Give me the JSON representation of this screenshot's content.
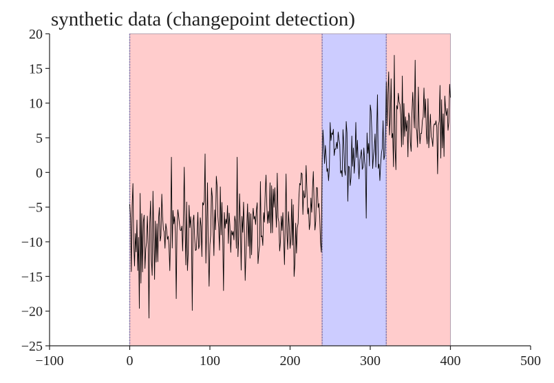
{
  "chart_data": {
    "type": "line",
    "title": "synthetic data (changepoint detection)",
    "xlabel": "",
    "ylabel": "",
    "xlim": [
      -100,
      500
    ],
    "ylim": [
      -25,
      20
    ],
    "x_ticks": [
      -100,
      0,
      100,
      200,
      300,
      400,
      500
    ],
    "y_ticks": [
      -25,
      -20,
      -15,
      -10,
      -5,
      0,
      5,
      10,
      15,
      20
    ],
    "x_tick_labels": [
      "−100",
      "0",
      "100",
      "200",
      "300",
      "400",
      "500"
    ],
    "y_tick_labels": [
      "−25",
      "−20",
      "−15",
      "−10",
      "−5",
      "0",
      "5",
      "10",
      "15",
      "20"
    ],
    "grid": false,
    "regions": [
      {
        "x_start": 0,
        "x_end": 240,
        "color": "#ffcccc"
      },
      {
        "x_start": 240,
        "x_end": 320,
        "color": "#ccccff"
      },
      {
        "x_start": 320,
        "x_end": 400,
        "color": "#ffcccc"
      }
    ],
    "changepoints": [
      0,
      240,
      320
    ],
    "series": [
      {
        "color": "#000000",
        "segments": [
          {
            "x_start": 0,
            "x_end": 240,
            "mean_start": -9.5,
            "mean_end": -5.5,
            "noise": 3.4,
            "seed": 7
          },
          {
            "x_start": 240,
            "x_end": 320,
            "mean_start": 2.5,
            "mean_end": 3.5,
            "noise": 2.8,
            "seed": 11
          },
          {
            "x_start": 320,
            "x_end": 400,
            "mean_start": 8.0,
            "mean_end": 8.0,
            "noise": 3.0,
            "seed": 19
          }
        ],
        "spikes": [
          {
            "x": 2,
            "y": -14.3
          },
          {
            "x": 12,
            "y": -19.6
          },
          {
            "x": 24,
            "y": -21.0
          },
          {
            "x": 52,
            "y": 2.2
          },
          {
            "x": 58,
            "y": -18.2
          },
          {
            "x": 78,
            "y": -19.9
          },
          {
            "x": 134,
            "y": 2.2
          },
          {
            "x": 205,
            "y": -15.0
          },
          {
            "x": 239,
            "y": -11.5
          },
          {
            "x": 250,
            "y": 7.2
          },
          {
            "x": 295,
            "y": -6.6
          },
          {
            "x": 309,
            "y": 11.2
          },
          {
            "x": 323,
            "y": 14.5
          },
          {
            "x": 330,
            "y": 16.9
          },
          {
            "x": 332,
            "y": 0.4
          },
          {
            "x": 392,
            "y": 2.3
          },
          {
            "x": 384,
            "y": -0.2
          },
          {
            "x": 400,
            "y": 10.8
          }
        ]
      }
    ]
  }
}
